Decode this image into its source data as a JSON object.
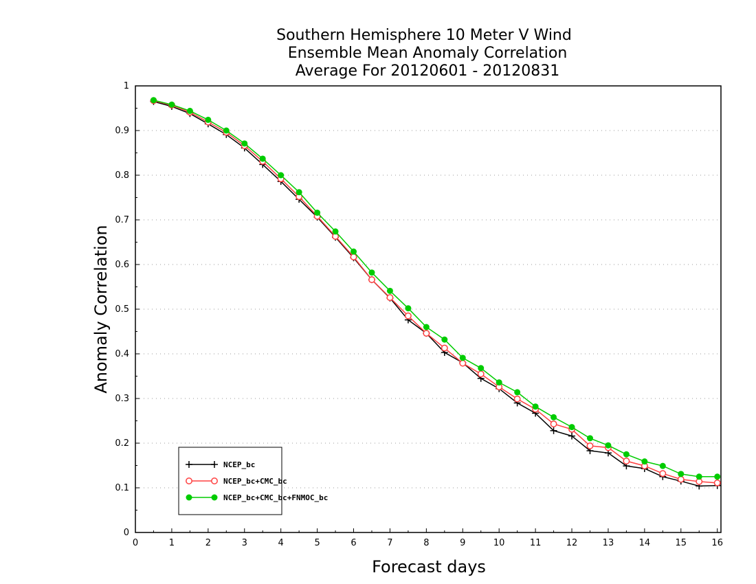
{
  "chart_data": {
    "type": "line",
    "title": [
      "Southern Hemisphere 10 Meter V Wind",
      "Ensemble Mean Anomaly Correlation",
      "Average For 20120601 - 20120831"
    ],
    "xlabel": "Forecast days",
    "ylabel": "Anomaly Correlation",
    "xlim": [
      0,
      16.1
    ],
    "ylim": [
      0,
      1
    ],
    "xticks": [
      0,
      1,
      2,
      3,
      4,
      5,
      6,
      7,
      8,
      9,
      10,
      11,
      12,
      13,
      14,
      15,
      16
    ],
    "yticks": [
      0,
      0.1,
      0.2,
      0.3,
      0.4,
      0.5,
      0.6,
      0.7,
      0.8,
      0.9,
      1
    ],
    "grid": "horizontal dotted",
    "legend_position": "bottom-left",
    "x": [
      0.5,
      1.0,
      1.5,
      2.0,
      2.5,
      3.0,
      3.5,
      4.0,
      4.5,
      5.0,
      5.5,
      6.0,
      6.5,
      7.0,
      7.5,
      8.0,
      8.5,
      9.0,
      9.5,
      10.0,
      10.5,
      11.0,
      11.5,
      12.0,
      12.5,
      13.0,
      13.5,
      14.0,
      14.5,
      15.0,
      15.5,
      16.0
    ],
    "series": [
      {
        "name": "NCEP_bc",
        "color": "#000000",
        "marker": "plus",
        "values": [
          0.965,
          0.954,
          0.938,
          0.915,
          0.891,
          0.861,
          0.824,
          0.786,
          0.746,
          0.706,
          0.661,
          0.615,
          0.566,
          0.525,
          0.476,
          0.446,
          0.403,
          0.38,
          0.345,
          0.322,
          0.29,
          0.267,
          0.228,
          0.216,
          0.183,
          0.178,
          0.149,
          0.143,
          0.125,
          0.115,
          0.104,
          0.105
        ]
      },
      {
        "name": "NCEP_bc+CMC_bc",
        "color": "#ff4040",
        "marker": "open-circle",
        "values": [
          0.967,
          0.957,
          0.941,
          0.919,
          0.896,
          0.866,
          0.831,
          0.792,
          0.752,
          0.708,
          0.663,
          0.617,
          0.566,
          0.526,
          0.485,
          0.446,
          0.413,
          0.379,
          0.355,
          0.326,
          0.299,
          0.276,
          0.243,
          0.231,
          0.194,
          0.19,
          0.16,
          0.149,
          0.132,
          0.119,
          0.114,
          0.111
        ]
      },
      {
        "name": "NCEP_bc+CMC_bc+FNMOC_bc",
        "color": "#00cc00",
        "marker": "filled-circle",
        "values": [
          0.968,
          0.958,
          0.944,
          0.924,
          0.9,
          0.871,
          0.837,
          0.8,
          0.762,
          0.716,
          0.674,
          0.629,
          0.582,
          0.541,
          0.502,
          0.46,
          0.432,
          0.391,
          0.368,
          0.336,
          0.314,
          0.282,
          0.258,
          0.236,
          0.211,
          0.195,
          0.175,
          0.159,
          0.149,
          0.131,
          0.125,
          0.125
        ]
      }
    ]
  }
}
